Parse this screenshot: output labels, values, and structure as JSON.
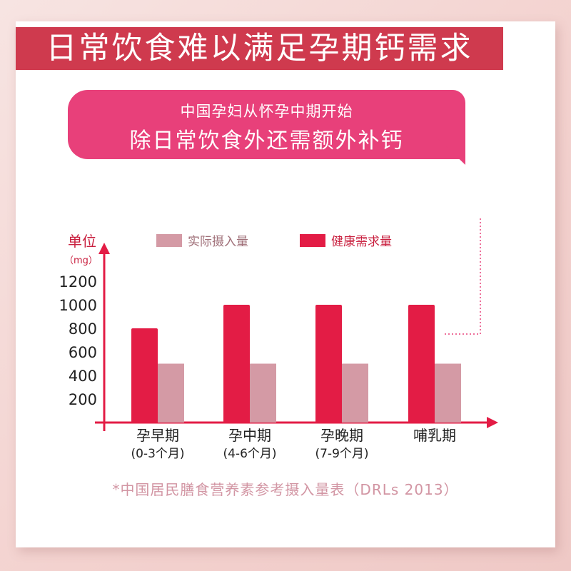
{
  "banner": {
    "title": "日常饮食难以满足孕期钙需求"
  },
  "callout": {
    "line1": "中国孕妇从怀孕中期开始",
    "line2": "除日常饮食外还需额外补钙"
  },
  "footnote": "*中国居民膳食营养素参考摄入量表（DRLs 2013）",
  "colors": {
    "banner": "#cf3a4e",
    "callout": "#e8407a",
    "required": "#e31c45",
    "actual": "#d49aa5",
    "axis": "#e31c45",
    "ylabel": "#c9203f",
    "text": "#222222"
  },
  "chart_data": {
    "type": "bar",
    "ylabel": "单位",
    "yunit": "（mg）",
    "yticks": [
      "200",
      "400",
      "600",
      "800",
      "1000",
      "1200"
    ],
    "ylim": [
      0,
      1200
    ],
    "categories": [
      {
        "name": "孕早期",
        "sub": "(0-3个月)"
      },
      {
        "name": "孕中期",
        "sub": "(4-6个月)"
      },
      {
        "name": "孕晚期",
        "sub": "(7-9个月)"
      },
      {
        "name": "哺乳期",
        "sub": ""
      }
    ],
    "series": [
      {
        "name": "健康需求量",
        "values": [
          800,
          1000,
          1000,
          1000
        ]
      },
      {
        "name": "实际摄入量",
        "values": [
          500,
          500,
          500,
          500
        ]
      }
    ],
    "legend": "top",
    "grid": false
  }
}
